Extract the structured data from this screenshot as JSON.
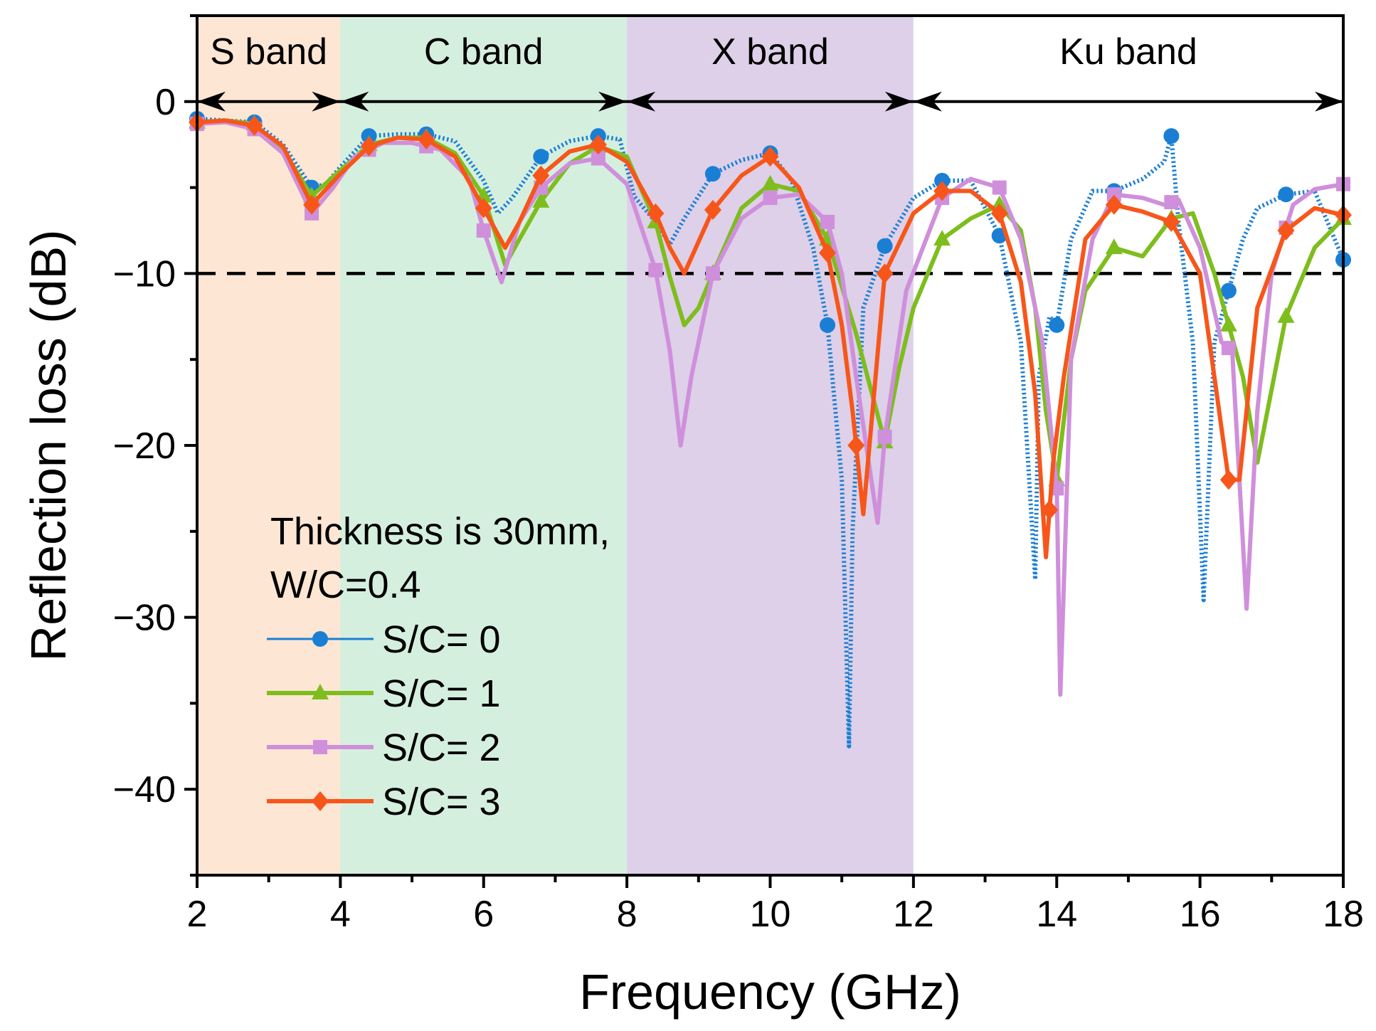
{
  "chart_data": {
    "type": "line",
    "xlabel": "Frequency (GHz)",
    "ylabel": "Reflection loss (dB)",
    "xlim": [
      2,
      18
    ],
    "ylim": [
      -45,
      5
    ],
    "xticks": [
      2,
      4,
      6,
      8,
      10,
      12,
      14,
      16,
      18
    ],
    "xtick_labels": [
      "2",
      "4",
      "6",
      "8",
      "10",
      "12",
      "14",
      "16",
      "18"
    ],
    "yticks": [
      0,
      -10,
      -20,
      -30,
      -40
    ],
    "ytick_labels": [
      "0",
      "−10",
      "−20",
      "−30",
      "−40"
    ],
    "reference_line": {
      "y": -10,
      "style": "dashed",
      "color": "#000000"
    },
    "band_arrow_y": 0,
    "bands": [
      {
        "label": "S band",
        "from": 2,
        "to": 4,
        "color": "#fde6d4"
      },
      {
        "label": "C band",
        "from": 4,
        "to": 8,
        "color": "#d5efdf"
      },
      {
        "label": "X band",
        "from": 8,
        "to": 12,
        "color": "#ddd0e8"
      },
      {
        "label": "Ku band",
        "from": 12,
        "to": 18,
        "color": "#ffffff"
      }
    ],
    "annotation": {
      "lines": [
        "Thickness is 30mm,",
        "W/C=0.4"
      ]
    },
    "legend_placement": "lower-left",
    "series": [
      {
        "name": "S/C= 0",
        "color": "#1a7fd4",
        "marker": "circle",
        "style": "dotted",
        "x": [
          2.0,
          2.4,
          2.8,
          3.2,
          3.6,
          3.8,
          4.0,
          4.4,
          4.8,
          5.2,
          5.6,
          6.0,
          6.2,
          6.4,
          6.8,
          7.2,
          7.6,
          7.9,
          8.1,
          8.4,
          8.6,
          8.8,
          9.2,
          9.6,
          10.0,
          10.3,
          10.6,
          10.8,
          11.0,
          11.1,
          11.15,
          11.3,
          11.6,
          12.0,
          12.4,
          12.8,
          13.2,
          13.5,
          13.7,
          13.75,
          13.9,
          14.0,
          14.2,
          14.5,
          14.8,
          15.2,
          15.5,
          15.6,
          15.7,
          15.9,
          16.05,
          16.2,
          16.4,
          16.6,
          16.8,
          17.2,
          17.6,
          18.0
        ],
        "y": [
          -1.0,
          -1.1,
          -1.2,
          -2.5,
          -5.0,
          -4.8,
          -3.8,
          -2.0,
          -1.9,
          -1.9,
          -2.3,
          -4.6,
          -6.5,
          -5.6,
          -3.2,
          -2.3,
          -2.0,
          -2.2,
          -5.5,
          -7.0,
          -8.3,
          -6.8,
          -4.2,
          -3.4,
          -3.0,
          -4.6,
          -8.5,
          -13.0,
          -22.0,
          -37.5,
          -25.0,
          -12.0,
          -8.4,
          -5.6,
          -4.6,
          -4.6,
          -7.8,
          -14.0,
          -27.8,
          -16.0,
          -12.5,
          -13.0,
          -8.0,
          -5.2,
          -5.2,
          -4.5,
          -3.5,
          -2.0,
          -7.0,
          -14.0,
          -29.0,
          -14.0,
          -11.0,
          -8.0,
          -6.2,
          -5.4,
          -5.2,
          -9.2
        ],
        "markers_x": [
          2.0,
          2.8,
          3.6,
          4.4,
          5.2,
          6.8,
          7.6,
          9.2,
          10.0,
          10.8,
          11.6,
          12.4,
          13.2,
          14.0,
          14.8,
          15.6,
          16.4,
          17.2,
          18.0
        ]
      },
      {
        "name": "S/C= 1",
        "color": "#7ebd1e",
        "marker": "triangle",
        "style": "solid",
        "x": [
          2.0,
          2.4,
          2.8,
          3.2,
          3.6,
          4.0,
          4.4,
          4.8,
          5.2,
          5.6,
          6.0,
          6.3,
          6.5,
          6.8,
          7.2,
          7.6,
          8.0,
          8.4,
          8.6,
          8.8,
          9.0,
          9.2,
          9.6,
          10.0,
          10.4,
          10.8,
          11.2,
          11.6,
          11.8,
          12.0,
          12.4,
          12.8,
          13.2,
          13.5,
          13.7,
          13.85,
          14.0,
          14.2,
          14.4,
          14.8,
          15.2,
          15.6,
          15.9,
          16.2,
          16.4,
          16.6,
          16.8,
          17.2,
          17.6,
          18.0
        ],
        "y": [
          -1.2,
          -1.1,
          -1.3,
          -2.8,
          -5.5,
          -4.0,
          -2.5,
          -2.1,
          -2.1,
          -3.0,
          -5.5,
          -9.5,
          -8.0,
          -5.8,
          -3.6,
          -2.6,
          -3.2,
          -7.0,
          -10.2,
          -13.0,
          -12.0,
          -10.0,
          -6.2,
          -4.8,
          -5.2,
          -8.0,
          -13.5,
          -19.8,
          -15.5,
          -12.0,
          -8.0,
          -6.8,
          -6.0,
          -7.5,
          -12.0,
          -18.0,
          -22.0,
          -15.0,
          -11.0,
          -8.5,
          -9.0,
          -6.8,
          -6.5,
          -10.0,
          -13.0,
          -16.0,
          -21.0,
          -12.5,
          -8.5,
          -6.8
        ]
      },
      {
        "name": "S/C= 2",
        "color": "#cf8fdb",
        "marker": "square",
        "style": "solid",
        "x": [
          2.0,
          2.4,
          2.8,
          3.2,
          3.6,
          3.9,
          4.2,
          4.6,
          5.0,
          5.4,
          5.8,
          6.0,
          6.25,
          6.5,
          6.8,
          7.2,
          7.6,
          8.0,
          8.4,
          8.6,
          8.75,
          8.9,
          9.2,
          9.6,
          10.0,
          10.4,
          10.8,
          11.0,
          11.2,
          11.5,
          11.6,
          11.9,
          12.4,
          12.8,
          13.2,
          13.5,
          13.8,
          14.0,
          14.05,
          14.2,
          14.5,
          14.8,
          15.2,
          15.5,
          15.7,
          16.0,
          16.3,
          16.45,
          16.65,
          16.8,
          17.0,
          17.3,
          17.6,
          18.0
        ],
        "y": [
          -1.3,
          -1.2,
          -1.6,
          -3.0,
          -6.5,
          -5.0,
          -3.2,
          -2.4,
          -2.4,
          -2.8,
          -4.5,
          -7.5,
          -10.5,
          -7.0,
          -5.0,
          -3.6,
          -3.3,
          -4.8,
          -9.8,
          -14.5,
          -20.0,
          -16.0,
          -10.0,
          -6.8,
          -5.6,
          -5.4,
          -7.0,
          -10.0,
          -16.0,
          -24.5,
          -19.5,
          -11.0,
          -5.6,
          -4.5,
          -5.0,
          -8.0,
          -14.0,
          -22.5,
          -34.5,
          -15.0,
          -8.0,
          -5.4,
          -5.6,
          -6.0,
          -5.7,
          -8.5,
          -14.0,
          -14.5,
          -29.5,
          -18.0,
          -10.0,
          -6.0,
          -5.1,
          -4.8
        ],
        "markers_x": [
          2.0,
          2.8,
          3.6,
          4.4,
          5.2,
          6.0,
          6.8,
          7.6,
          8.4,
          9.2,
          10.0,
          10.8,
          11.6,
          12.4,
          13.2,
          14.0,
          14.8,
          15.6,
          16.4,
          17.2,
          18.0
        ]
      },
      {
        "name": "S/C= 3",
        "color": "#f7561a",
        "marker": "diamond",
        "style": "solid",
        "x": [
          2.0,
          2.4,
          2.8,
          3.2,
          3.6,
          4.0,
          4.4,
          4.8,
          5.2,
          5.6,
          6.0,
          6.3,
          6.5,
          6.8,
          7.2,
          7.6,
          8.0,
          8.4,
          8.6,
          8.8,
          9.2,
          9.6,
          10.0,
          10.4,
          10.8,
          11.0,
          11.15,
          11.3,
          11.6,
          12.0,
          12.4,
          12.8,
          13.2,
          13.5,
          13.7,
          13.85,
          13.95,
          14.1,
          14.4,
          14.8,
          15.2,
          15.6,
          16.0,
          16.2,
          16.4,
          16.55,
          16.8,
          17.2,
          17.6,
          18.0
        ],
        "y": [
          -1.2,
          -1.1,
          -1.4,
          -2.6,
          -6.0,
          -4.2,
          -2.6,
          -2.1,
          -2.2,
          -3.2,
          -6.2,
          -8.5,
          -7.0,
          -4.3,
          -2.9,
          -2.5,
          -3.5,
          -6.5,
          -8.5,
          -10.0,
          -6.3,
          -4.3,
          -3.2,
          -5.0,
          -8.8,
          -13.0,
          -18.0,
          -24.0,
          -10.0,
          -6.5,
          -5.2,
          -5.2,
          -6.5,
          -10.5,
          -17.0,
          -26.5,
          -21.0,
          -16.0,
          -8.0,
          -6.0,
          -6.4,
          -7.0,
          -10.0,
          -16.0,
          -22.0,
          -22.0,
          -12.0,
          -7.5,
          -6.2,
          -6.6
        ],
        "markers_x": [
          2.0,
          2.8,
          3.6,
          4.4,
          5.2,
          6.0,
          6.8,
          7.6,
          8.4,
          9.2,
          10.0,
          10.8,
          11.2,
          11.6,
          12.4,
          13.2,
          13.9,
          14.8,
          15.6,
          16.4,
          17.2,
          18.0
        ]
      }
    ]
  }
}
